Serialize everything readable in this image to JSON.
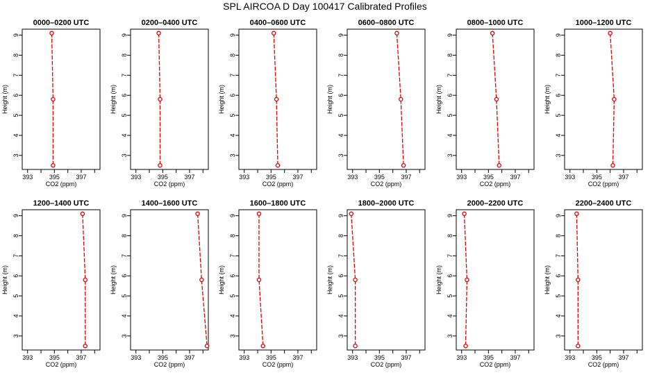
{
  "figure": {
    "title": "SPL AIRCOA D  Day 100417  Calibrated Profiles"
  },
  "chart_data": [
    {
      "type": "line",
      "title": "0000–0200 UTC",
      "xlabel": "CO2 (ppm)",
      "ylabel": "Height (m)",
      "xlim": [
        392.6,
        398.4
      ],
      "ylim": [
        2.3,
        9.3
      ],
      "xticks": [
        393,
        395,
        397
      ],
      "yticks": [
        3,
        4,
        5,
        6,
        7,
        8,
        9
      ],
      "grid": false,
      "series": [
        {
          "x": [
            394.8,
            394.9,
            394.9
          ],
          "y": [
            9.1,
            5.8,
            2.5
          ]
        }
      ]
    },
    {
      "type": "line",
      "title": "0200–0400 UTC",
      "xlabel": "CO2 (ppm)",
      "ylabel": "Height (m)",
      "xlim": [
        392.6,
        398.4
      ],
      "ylim": [
        2.3,
        9.3
      ],
      "xticks": [
        393,
        395,
        397
      ],
      "yticks": [
        3,
        4,
        5,
        6,
        7,
        8,
        9
      ],
      "grid": false,
      "series": [
        {
          "x": [
            394.7,
            394.8,
            394.8
          ],
          "y": [
            9.1,
            5.8,
            2.5
          ]
        }
      ]
    },
    {
      "type": "line",
      "title": "0400–0600 UTC",
      "xlabel": "CO2 (ppm)",
      "ylabel": "Height (m)",
      "xlim": [
        392.6,
        398.4
      ],
      "ylim": [
        2.3,
        9.3
      ],
      "xticks": [
        393,
        395,
        397
      ],
      "yticks": [
        3,
        4,
        5,
        6,
        7,
        8,
        9
      ],
      "grid": false,
      "series": [
        {
          "x": [
            395.2,
            395.4,
            395.5
          ],
          "y": [
            9.1,
            5.8,
            2.5
          ]
        }
      ]
    },
    {
      "type": "line",
      "title": "0600–0800 UTC",
      "xlabel": "CO2 (ppm)",
      "ylabel": "Height (m)",
      "xlim": [
        392.6,
        398.4
      ],
      "ylim": [
        2.3,
        9.3
      ],
      "xticks": [
        393,
        395,
        397
      ],
      "yticks": [
        3,
        4,
        5,
        6,
        7,
        8,
        9
      ],
      "grid": false,
      "series": [
        {
          "x": [
            396.3,
            396.6,
            396.8
          ],
          "y": [
            9.1,
            5.8,
            2.5
          ]
        }
      ]
    },
    {
      "type": "line",
      "title": "0800–1000 UTC",
      "xlabel": "CO2 (ppm)",
      "ylabel": "Height (m)",
      "xlim": [
        392.6,
        398.4
      ],
      "ylim": [
        2.3,
        9.3
      ],
      "xticks": [
        393,
        395,
        397
      ],
      "yticks": [
        3,
        4,
        5,
        6,
        7,
        8,
        9
      ],
      "grid": false,
      "series": [
        {
          "x": [
            395.3,
            395.6,
            395.8
          ],
          "y": [
            9.1,
            5.8,
            2.5
          ]
        }
      ]
    },
    {
      "type": "line",
      "title": "1000–1200 UTC",
      "xlabel": "CO2 (ppm)",
      "ylabel": "Height (m)",
      "xlim": [
        392.6,
        398.4
      ],
      "ylim": [
        2.3,
        9.3
      ],
      "xticks": [
        393,
        395,
        397
      ],
      "yticks": [
        3,
        4,
        5,
        6,
        7,
        8,
        9
      ],
      "grid": false,
      "series": [
        {
          "x": [
            396.0,
            396.3,
            396.2
          ],
          "y": [
            9.1,
            5.8,
            2.5
          ]
        }
      ]
    },
    {
      "type": "line",
      "title": "1200–1400 UTC",
      "xlabel": "CO2 (ppm)",
      "ylabel": "Height (m)",
      "xlim": [
        392.6,
        398.4
      ],
      "ylim": [
        2.3,
        9.3
      ],
      "xticks": [
        393,
        395,
        397
      ],
      "yticks": [
        3,
        4,
        5,
        6,
        7,
        8,
        9
      ],
      "grid": false,
      "series": [
        {
          "x": [
            397.1,
            397.3,
            397.3
          ],
          "y": [
            9.1,
            5.8,
            2.5
          ]
        }
      ]
    },
    {
      "type": "line",
      "title": "1400–1600 UTC",
      "xlabel": "CO2 (ppm)",
      "ylabel": "Height (m)",
      "xlim": [
        392.6,
        398.4
      ],
      "ylim": [
        2.3,
        9.3
      ],
      "xticks": [
        393,
        395,
        397
      ],
      "yticks": [
        3,
        4,
        5,
        6,
        7,
        8,
        9
      ],
      "grid": false,
      "series": [
        {
          "x": [
            397.6,
            397.9,
            398.3
          ],
          "y": [
            9.1,
            5.8,
            2.5
          ]
        }
      ]
    },
    {
      "type": "line",
      "title": "1600–1800 UTC",
      "xlabel": "CO2 (ppm)",
      "ylabel": "Height (m)",
      "xlim": [
        392.6,
        398.4
      ],
      "ylim": [
        2.3,
        9.3
      ],
      "xticks": [
        393,
        395,
        397
      ],
      "yticks": [
        3,
        4,
        5,
        6,
        7,
        8,
        9
      ],
      "grid": false,
      "series": [
        {
          "x": [
            394.1,
            394.1,
            394.4
          ],
          "y": [
            9.1,
            5.8,
            2.5
          ]
        }
      ]
    },
    {
      "type": "line",
      "title": "1800–2000 UTC",
      "xlabel": "CO2 (ppm)",
      "ylabel": "Height (m)",
      "xlim": [
        392.6,
        398.4
      ],
      "ylim": [
        2.3,
        9.3
      ],
      "xticks": [
        393,
        395,
        397
      ],
      "yticks": [
        3,
        4,
        5,
        6,
        7,
        8,
        9
      ],
      "grid": false,
      "series": [
        {
          "x": [
            392.9,
            393.2,
            393.2
          ],
          "y": [
            9.1,
            5.8,
            2.5
          ]
        }
      ]
    },
    {
      "type": "line",
      "title": "2000–2200 UTC",
      "xlabel": "CO2 (ppm)",
      "ylabel": "Height (m)",
      "xlim": [
        392.6,
        398.4
      ],
      "ylim": [
        2.3,
        9.3
      ],
      "xticks": [
        393,
        395,
        397
      ],
      "yticks": [
        3,
        4,
        5,
        6,
        7,
        8,
        9
      ],
      "grid": false,
      "series": [
        {
          "x": [
            393.2,
            393.4,
            393.3
          ],
          "y": [
            9.1,
            5.8,
            2.5
          ]
        }
      ]
    },
    {
      "type": "line",
      "title": "2200–2400 UTC",
      "xlabel": "CO2 (ppm)",
      "ylabel": "Height (m)",
      "xlim": [
        392.6,
        398.4
      ],
      "ylim": [
        2.3,
        9.3
      ],
      "xticks": [
        393,
        395,
        397
      ],
      "yticks": [
        3,
        4,
        5,
        6,
        7,
        8,
        9
      ],
      "grid": false,
      "series": [
        {
          "x": [
            393.5,
            393.6,
            393.6
          ],
          "y": [
            9.1,
            5.8,
            2.5
          ]
        }
      ]
    }
  ],
  "colors": {
    "series": "#dd0000",
    "axis": "#000000",
    "background": "#ffffff"
  }
}
